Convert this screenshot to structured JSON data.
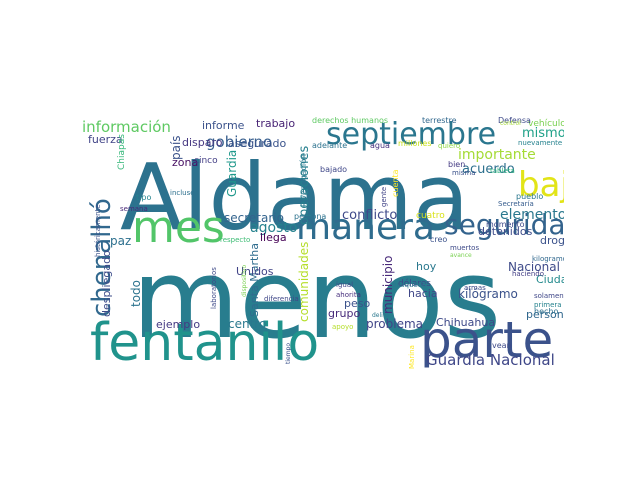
{
  "cloud": {
    "words": [
      {
        "text": "menos",
        "color": "#287d8e"
      },
      {
        "text": "Aldama",
        "color": "#2c728e"
      },
      {
        "text": "fentanilo",
        "color": "#20938c"
      },
      {
        "text": "parte",
        "color": "#3b528b"
      },
      {
        "text": "septiembre",
        "color": "#2a768e"
      },
      {
        "text": "mes",
        "color": "#52c569"
      },
      {
        "text": "manera",
        "color": "#2f6c8e"
      },
      {
        "text": "baja",
        "color": "#e2e418"
      },
      {
        "text": "seguridad",
        "color": "#33638d"
      },
      {
        "text": "chenalhó",
        "color": "#31688e"
      },
      {
        "text": "Guardia Nacional",
        "color": "#3f4788"
      },
      {
        "text": "información",
        "color": "#5ec962"
      },
      {
        "text": "gobierno",
        "color": "#365d8d"
      },
      {
        "text": "importante",
        "color": "#a5db36"
      },
      {
        "text": "acuerdo",
        "color": "#2d708e"
      },
      {
        "text": "elementos",
        "color": "#2a788e"
      },
      {
        "text": "conflicto",
        "color": "#3e4989"
      },
      {
        "text": "agosto",
        "color": "#26828e"
      },
      {
        "text": "secretario",
        "color": "#33638d"
      },
      {
        "text": "mismo",
        "color": "#1fa188"
      },
      {
        "text": "comunidades",
        "color": "#b5de2b"
      },
      {
        "text": "operaciones",
        "color": "#27808e"
      },
      {
        "text": "municipio",
        "color": "#482979"
      },
      {
        "text": "Nacional",
        "color": "#3e4a89"
      },
      {
        "text": "Ciudad",
        "color": "#238a8d"
      },
      {
        "text": "kilógramo",
        "color": "#3b528b"
      },
      {
        "text": "paz",
        "color": "#2d708e"
      },
      {
        "text": "todo",
        "color": "#2c738e"
      },
      {
        "text": "despliegado",
        "color": "#3e4c8a"
      },
      {
        "text": "país",
        "color": "#3b528b"
      },
      {
        "text": "disparo",
        "color": "#453781"
      },
      {
        "text": "informe",
        "color": "#3b528b"
      },
      {
        "text": "trabajo",
        "color": "#482475"
      },
      {
        "text": "asegurado",
        "color": "#3a538b"
      },
      {
        "text": "Guardia",
        "color": "#1f988b"
      },
      {
        "text": "llega",
        "color": "#440154"
      },
      {
        "text": "centro",
        "color": "#2a788e"
      },
      {
        "text": "ejemplo",
        "color": "#443983"
      },
      {
        "text": "Santa Martha",
        "color": "#2f6c8e"
      },
      {
        "text": "Unidos",
        "color": "#414487"
      },
      {
        "text": "peso",
        "color": "#3b528b"
      },
      {
        "text": "grupo",
        "color": "#472a7a"
      },
      {
        "text": "problema",
        "color": "#404588"
      },
      {
        "text": "Chihuahua",
        "color": "#3e4a89"
      },
      {
        "text": "personal",
        "color": "#31688e"
      },
      {
        "text": "hacia",
        "color": "#3f4788"
      },
      {
        "text": "hoy",
        "color": "#2a788e"
      },
      {
        "text": "dólares",
        "color": "#3e4989"
      },
      {
        "text": "droga",
        "color": "#3b528b"
      },
      {
        "text": "detenidos",
        "color": "#3e4c8a"
      },
      {
        "text": "zona",
        "color": "#471063"
      },
      {
        "text": "fuerza",
        "color": "#414487"
      },
      {
        "text": "Chiapas",
        "color": "#35b779"
      },
      {
        "text": "cinco",
        "color": "#433e85"
      },
      {
        "text": "vehículo",
        "color": "#7ad151"
      },
      {
        "text": "derechos humanos",
        "color": "#5ec962"
      },
      {
        "text": "terrestre",
        "color": "#31688e"
      },
      {
        "text": "Defensa",
        "color": "#3e4a89"
      },
      {
        "text": "adelante",
        "color": "#2c728e"
      },
      {
        "text": "agua",
        "color": "#46307e"
      },
      {
        "text": "millones",
        "color": "#c8e020"
      },
      {
        "text": "quiero",
        "color": "#8fd744"
      },
      {
        "text": "nuevamente",
        "color": "#26828e"
      },
      {
        "text": "bien",
        "color": "#443a83"
      },
      {
        "text": "misma",
        "color": "#3b528b"
      },
      {
        "text": "tableta",
        "color": "#2db27d"
      },
      {
        "text": "pueblo",
        "color": "#2a788e"
      },
      {
        "text": "Secretaría",
        "color": "#365c8d"
      },
      {
        "text": "cuatro",
        "color": "#d8e219"
      },
      {
        "text": "momento",
        "color": "#3e4989"
      },
      {
        "text": "bajado",
        "color": "#3f4788"
      },
      {
        "text": "investigación",
        "color": "#2a788e"
      },
      {
        "text": "cuenta",
        "color": "#fde725"
      },
      {
        "text": "gente",
        "color": "#414487"
      },
      {
        "text": "persona",
        "color": "#2c728e"
      },
      {
        "text": "tipo",
        "color": "#25848e"
      },
      {
        "text": "semana",
        "color": "#482878"
      },
      {
        "text": "incluso",
        "color": "#2d708e"
      },
      {
        "text": "respecto",
        "color": "#3dbc74"
      },
      {
        "text": "creo",
        "color": "#3b528b"
      },
      {
        "text": "muertos",
        "color": "#3e4a89"
      },
      {
        "text": "avance",
        "color": "#7ad151"
      },
      {
        "text": "kilogramo",
        "color": "#31688e"
      },
      {
        "text": "igual",
        "color": "#3f4788"
      },
      {
        "text": "ahorita",
        "color": "#472f7d"
      },
      {
        "text": "búsqueda",
        "color": "#2a788e"
      },
      {
        "text": "armas",
        "color": "#3e4a89"
      },
      {
        "text": "haciendo",
        "color": "#433e85"
      },
      {
        "text": "solamente",
        "color": "#3f4788"
      },
      {
        "text": "primera",
        "color": "#26828e"
      },
      {
        "text": "hecho",
        "color": "#2d708e"
      },
      {
        "text": "principalmente",
        "color": "#2db27d"
      },
      {
        "text": "históricamente",
        "color": "#3b528b"
      },
      {
        "text": "laboratorios",
        "color": "#3e4a89"
      },
      {
        "text": "dispositivo",
        "color": "#7ad151"
      },
      {
        "text": "diferencia",
        "color": "#3f4788"
      },
      {
        "text": "apoyo",
        "color": "#b5de2b"
      },
      {
        "text": "delito",
        "color": "#2a788e"
      },
      {
        "text": "tiempo",
        "color": "#3b528b"
      },
      {
        "text": "Marina",
        "color": "#fde725"
      },
      {
        "text": "vean",
        "color": "#3e4a89"
      },
      {
        "text": "control",
        "color": "#a5db36"
      }
    ]
  }
}
